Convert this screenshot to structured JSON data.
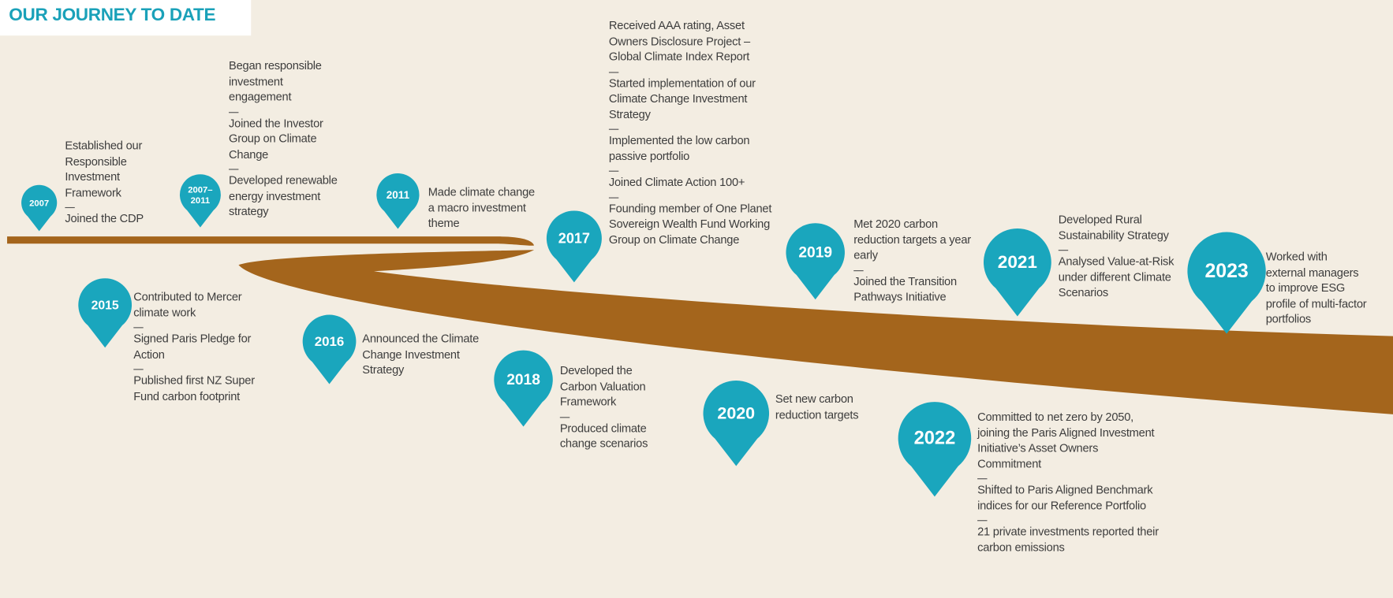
{
  "title": "OUR JOURNEY TO DATE",
  "milestones": [
    {
      "year": "2007",
      "items": [
        "Established our Responsible Investment Framework",
        "Joined the CDP"
      ]
    },
    {
      "year": "2007–2011",
      "items": [
        "Began responsible investment engagement",
        "Joined the Investor Group on Climate Change",
        "Developed renewable energy investment strategy"
      ]
    },
    {
      "year": "2011",
      "items": [
        "Made climate change a macro investment theme"
      ]
    },
    {
      "year": "2015",
      "items": [
        "Contributed to Mercer climate work",
        "Signed Paris Pledge for Action",
        "Published first NZ Super Fund carbon footprint"
      ]
    },
    {
      "year": "2016",
      "items": [
        "Announced the Climate Change Investment Strategy"
      ]
    },
    {
      "year": "2017",
      "items": [
        "Received AAA rating, Asset Owners Disclosure Project – Global Climate Index Report",
        "Started implementation of our Climate Change Investment Strategy",
        "Implemented the low carbon passive portfolio",
        "Joined Climate Action 100+",
        "Founding member of One Planet Sovereign Wealth Fund Working Group on Climate Change"
      ]
    },
    {
      "year": "2018",
      "items": [
        "Developed the Carbon Valuation Framework",
        "Produced climate change scenarios"
      ]
    },
    {
      "year": "2019",
      "items": [
        "Met 2020 carbon reduction targets a year early",
        "Joined the Transition Pathways Initiative"
      ]
    },
    {
      "year": "2020",
      "items": [
        "Set new carbon reduction targets"
      ]
    },
    {
      "year": "2021",
      "items": [
        "Developed Rural Sustainability Strategy",
        "Analysed Value-at-Risk under different Climate Scenarios"
      ]
    },
    {
      "year": "2022",
      "items": [
        "Committed to net zero by 2050, joining the Paris Aligned Investment Initiative’s Asset Owners Commitment",
        "Shifted to Paris Aligned Benchmark indices for our Reference Portfolio",
        "21 private investments reported their carbon emissions"
      ]
    },
    {
      "year": "2023",
      "items": [
        "Worked with external managers to improve ESG profile of multi-factor portfolios"
      ]
    }
  ]
}
